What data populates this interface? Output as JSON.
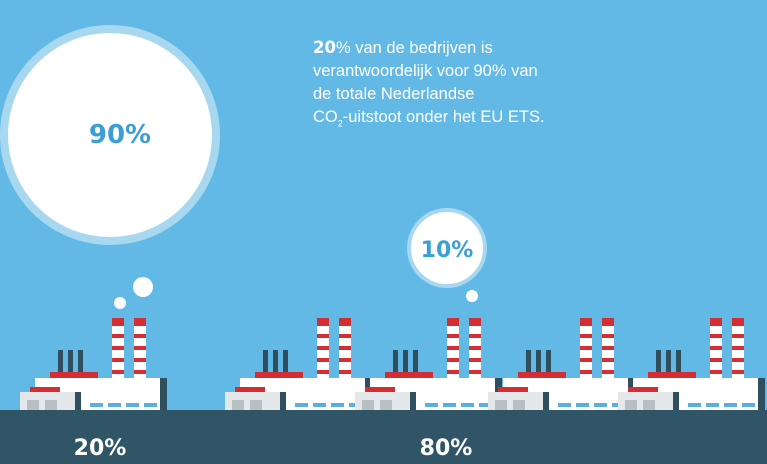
{
  "bubble_large": "90%",
  "bubble_small": "10%",
  "statement": {
    "bold": "20",
    "line1": "% van de bedrijven is",
    "line2": "verantwoordelijk voor 90% van",
    "line3": "de totale Nederlandse",
    "line4_start": "CO",
    "subscript": "2",
    "line4_end": "-uitstoot onder het EU ETS."
  },
  "group_left_label": "20%",
  "group_right_label": "80%"
}
